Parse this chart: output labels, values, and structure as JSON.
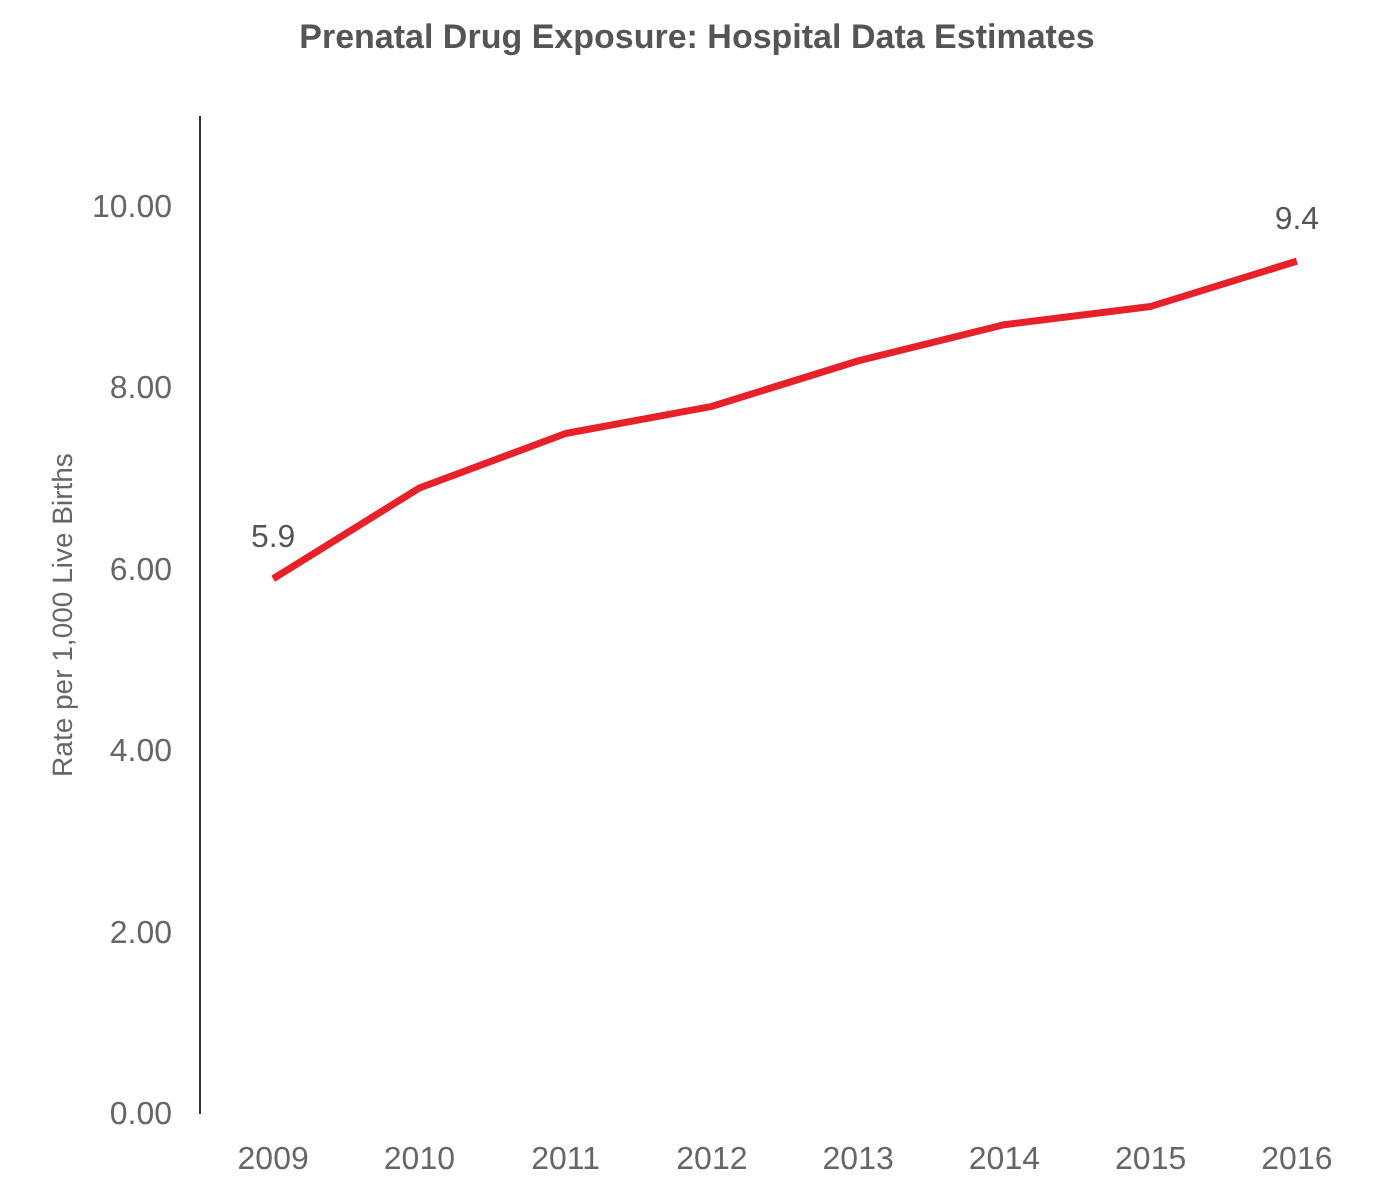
{
  "chart_data": {
    "type": "line",
    "title": "Prenatal Drug Exposure: Hospital Data Estimates",
    "ylabel": "Rate per 1,000 Live Births",
    "categories": [
      "2009",
      "2010",
      "2011",
      "2012",
      "2013",
      "2014",
      "2015",
      "2016"
    ],
    "series": [
      {
        "color": "#e8202a",
        "values": [
          5.9,
          6.9,
          7.5,
          7.8,
          8.3,
          8.7,
          8.9,
          9.4
        ],
        "value_labels": [
          "5.9",
          null,
          null,
          null,
          null,
          null,
          null,
          "9.4"
        ]
      }
    ],
    "ylim": [
      0,
      11
    ],
    "yticks": [
      {
        "value": 0,
        "label": "0.00"
      },
      {
        "value": 2,
        "label": "2.00"
      },
      {
        "value": 4,
        "label": "4.00"
      },
      {
        "value": 6,
        "label": "6.00"
      },
      {
        "value": 8,
        "label": "8.00"
      },
      {
        "value": 10,
        "label": "10.00"
      }
    ],
    "grid": false,
    "marker": "none",
    "line_style": "solid"
  }
}
